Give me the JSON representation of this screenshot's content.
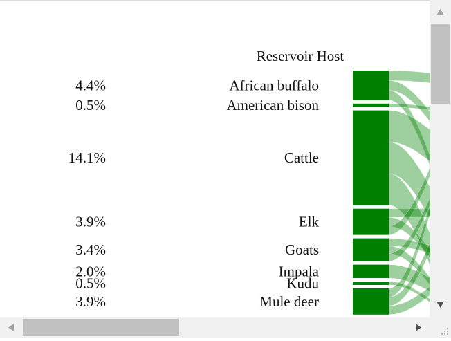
{
  "chart_data": {
    "type": "sankey",
    "node_column_title": "Reservoir Host",
    "colors": {
      "node": "#008000",
      "link": "#008000"
    },
    "nodes": [
      {
        "label": "African buffalo",
        "percent": "4.4%",
        "value": 4.4
      },
      {
        "label": "American bison",
        "percent": "0.5%",
        "value": 0.5
      },
      {
        "label": "Cattle",
        "percent": "14.1%",
        "value": 14.1
      },
      {
        "label": "Elk",
        "percent": "3.9%",
        "value": 3.9
      },
      {
        "label": "Goats",
        "percent": "3.4%",
        "value": 3.4
      },
      {
        "label": "Impala",
        "percent": "2.0%",
        "value": 2.0
      },
      {
        "label": "Kudu",
        "percent": "0.5%",
        "value": 0.5
      },
      {
        "label": "Mule deer",
        "percent": "3.9%",
        "value": 3.9
      }
    ]
  },
  "scrollbars": {
    "vertical": {
      "up_icon": "triangle-up-icon",
      "down_icon": "triangle-down-icon"
    },
    "horizontal": {
      "left_icon": "triangle-left-icon",
      "right_icon": "triangle-right-icon"
    }
  }
}
